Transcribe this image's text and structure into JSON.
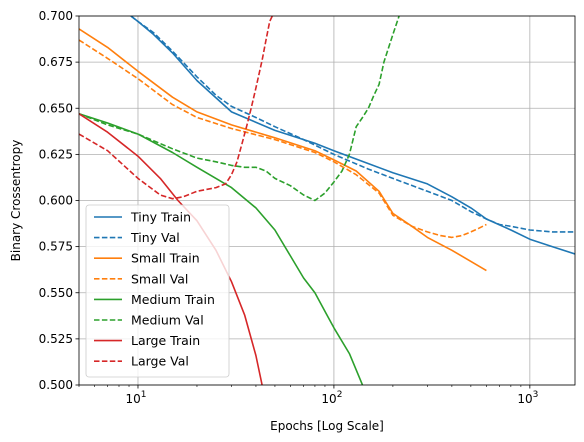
{
  "chart_data": {
    "type": "line",
    "xlabel": "Epochs [Log Scale]",
    "ylabel": "Binary Crossentropy",
    "xscale": "log",
    "xlim": [
      5,
      1700
    ],
    "ylim": [
      0.5,
      0.7
    ],
    "grid": true,
    "legend_position": "lower-left",
    "xticks": [
      {
        "value": 10,
        "base": "10",
        "exp": "1"
      },
      {
        "value": 100,
        "base": "10",
        "exp": "2"
      },
      {
        "value": 1000,
        "base": "10",
        "exp": "3"
      }
    ],
    "yticks": [
      "0.500",
      "0.525",
      "0.550",
      "0.575",
      "0.600",
      "0.625",
      "0.650",
      "0.675",
      "0.700"
    ],
    "series": [
      {
        "name": "Tiny Train",
        "color": "#1f77b4",
        "dash": "solid",
        "x": [
          9.2,
          10,
          12,
          15,
          20,
          30,
          50,
          80,
          100,
          150,
          200,
          300,
          400,
          500,
          600,
          800,
          1000,
          1300,
          1700
        ],
        "y": [
          0.7,
          0.697,
          0.69,
          0.68,
          0.665,
          0.648,
          0.638,
          0.631,
          0.627,
          0.62,
          0.615,
          0.609,
          0.602,
          0.596,
          0.59,
          0.584,
          0.579,
          0.575,
          0.571
        ]
      },
      {
        "name": "Tiny Val",
        "color": "#1f77b4",
        "dash": "dashed",
        "x": [
          9.2,
          10,
          12,
          15,
          20,
          25,
          30,
          40,
          50,
          70,
          100,
          150,
          200,
          300,
          400,
          500,
          600,
          700,
          800,
          1000,
          1300,
          1700
        ],
        "y": [
          0.7,
          0.697,
          0.691,
          0.681,
          0.667,
          0.657,
          0.651,
          0.645,
          0.64,
          0.633,
          0.625,
          0.617,
          0.612,
          0.605,
          0.6,
          0.594,
          0.59,
          0.587,
          0.586,
          0.584,
          0.583,
          0.583
        ]
      },
      {
        "name": "Small Train",
        "color": "#ff7f0e",
        "dash": "solid",
        "x": [
          5,
          7,
          10,
          15,
          20,
          30,
          50,
          80,
          100,
          130,
          170,
          200,
          250,
          300,
          400,
          500,
          600
        ],
        "y": [
          0.693,
          0.683,
          0.67,
          0.656,
          0.648,
          0.641,
          0.634,
          0.627,
          0.622,
          0.616,
          0.605,
          0.593,
          0.586,
          0.58,
          0.573,
          0.567,
          0.562
        ]
      },
      {
        "name": "Small Val",
        "color": "#ff7f0e",
        "dash": "dashed",
        "x": [
          5,
          7,
          10,
          15,
          20,
          30,
          50,
          80,
          100,
          130,
          170,
          200,
          250,
          300,
          350,
          400,
          450,
          500,
          550,
          600
        ],
        "y": [
          0.687,
          0.677,
          0.666,
          0.652,
          0.645,
          0.639,
          0.633,
          0.626,
          0.621,
          0.614,
          0.604,
          0.592,
          0.586,
          0.583,
          0.581,
          0.58,
          0.581,
          0.583,
          0.585,
          0.587
        ]
      },
      {
        "name": "Medium Train",
        "color": "#2ca02c",
        "dash": "solid",
        "x": [
          5,
          7,
          10,
          15,
          20,
          30,
          40,
          50,
          60,
          70,
          80,
          90,
          100,
          120,
          140
        ],
        "y": [
          0.647,
          0.642,
          0.636,
          0.626,
          0.618,
          0.607,
          0.596,
          0.584,
          0.57,
          0.558,
          0.55,
          0.54,
          0.531,
          0.517,
          0.5
        ]
      },
      {
        "name": "Medium Val",
        "color": "#2ca02c",
        "dash": "dashed",
        "x": [
          5,
          7,
          10,
          15,
          20,
          25,
          30,
          35,
          40,
          45,
          50,
          60,
          70,
          80,
          90,
          100,
          110,
          120,
          130,
          140,
          150,
          160,
          170,
          180,
          200,
          215
        ],
        "y": [
          0.647,
          0.641,
          0.636,
          0.628,
          0.623,
          0.621,
          0.619,
          0.618,
          0.618,
          0.616,
          0.612,
          0.608,
          0.603,
          0.6,
          0.604,
          0.61,
          0.616,
          0.625,
          0.64,
          0.645,
          0.65,
          0.657,
          0.663,
          0.675,
          0.69,
          0.7
        ]
      },
      {
        "name": "Large Train",
        "color": "#d62728",
        "dash": "solid",
        "x": [
          5,
          7,
          10,
          13,
          16,
          20,
          25,
          30,
          35,
          40,
          43
        ],
        "y": [
          0.647,
          0.637,
          0.624,
          0.612,
          0.6,
          0.589,
          0.573,
          0.556,
          0.538,
          0.516,
          0.5
        ]
      },
      {
        "name": "Large Val",
        "color": "#d62728",
        "dash": "dashed",
        "x": [
          5,
          7,
          10,
          13,
          15,
          17,
          20,
          25,
          28,
          30,
          32,
          34,
          36,
          38,
          40,
          43,
          45,
          47,
          48.5
        ],
        "y": [
          0.636,
          0.627,
          0.612,
          0.603,
          0.601,
          0.602,
          0.605,
          0.607,
          0.609,
          0.614,
          0.621,
          0.631,
          0.641,
          0.651,
          0.661,
          0.676,
          0.687,
          0.697,
          0.7
        ]
      }
    ]
  }
}
